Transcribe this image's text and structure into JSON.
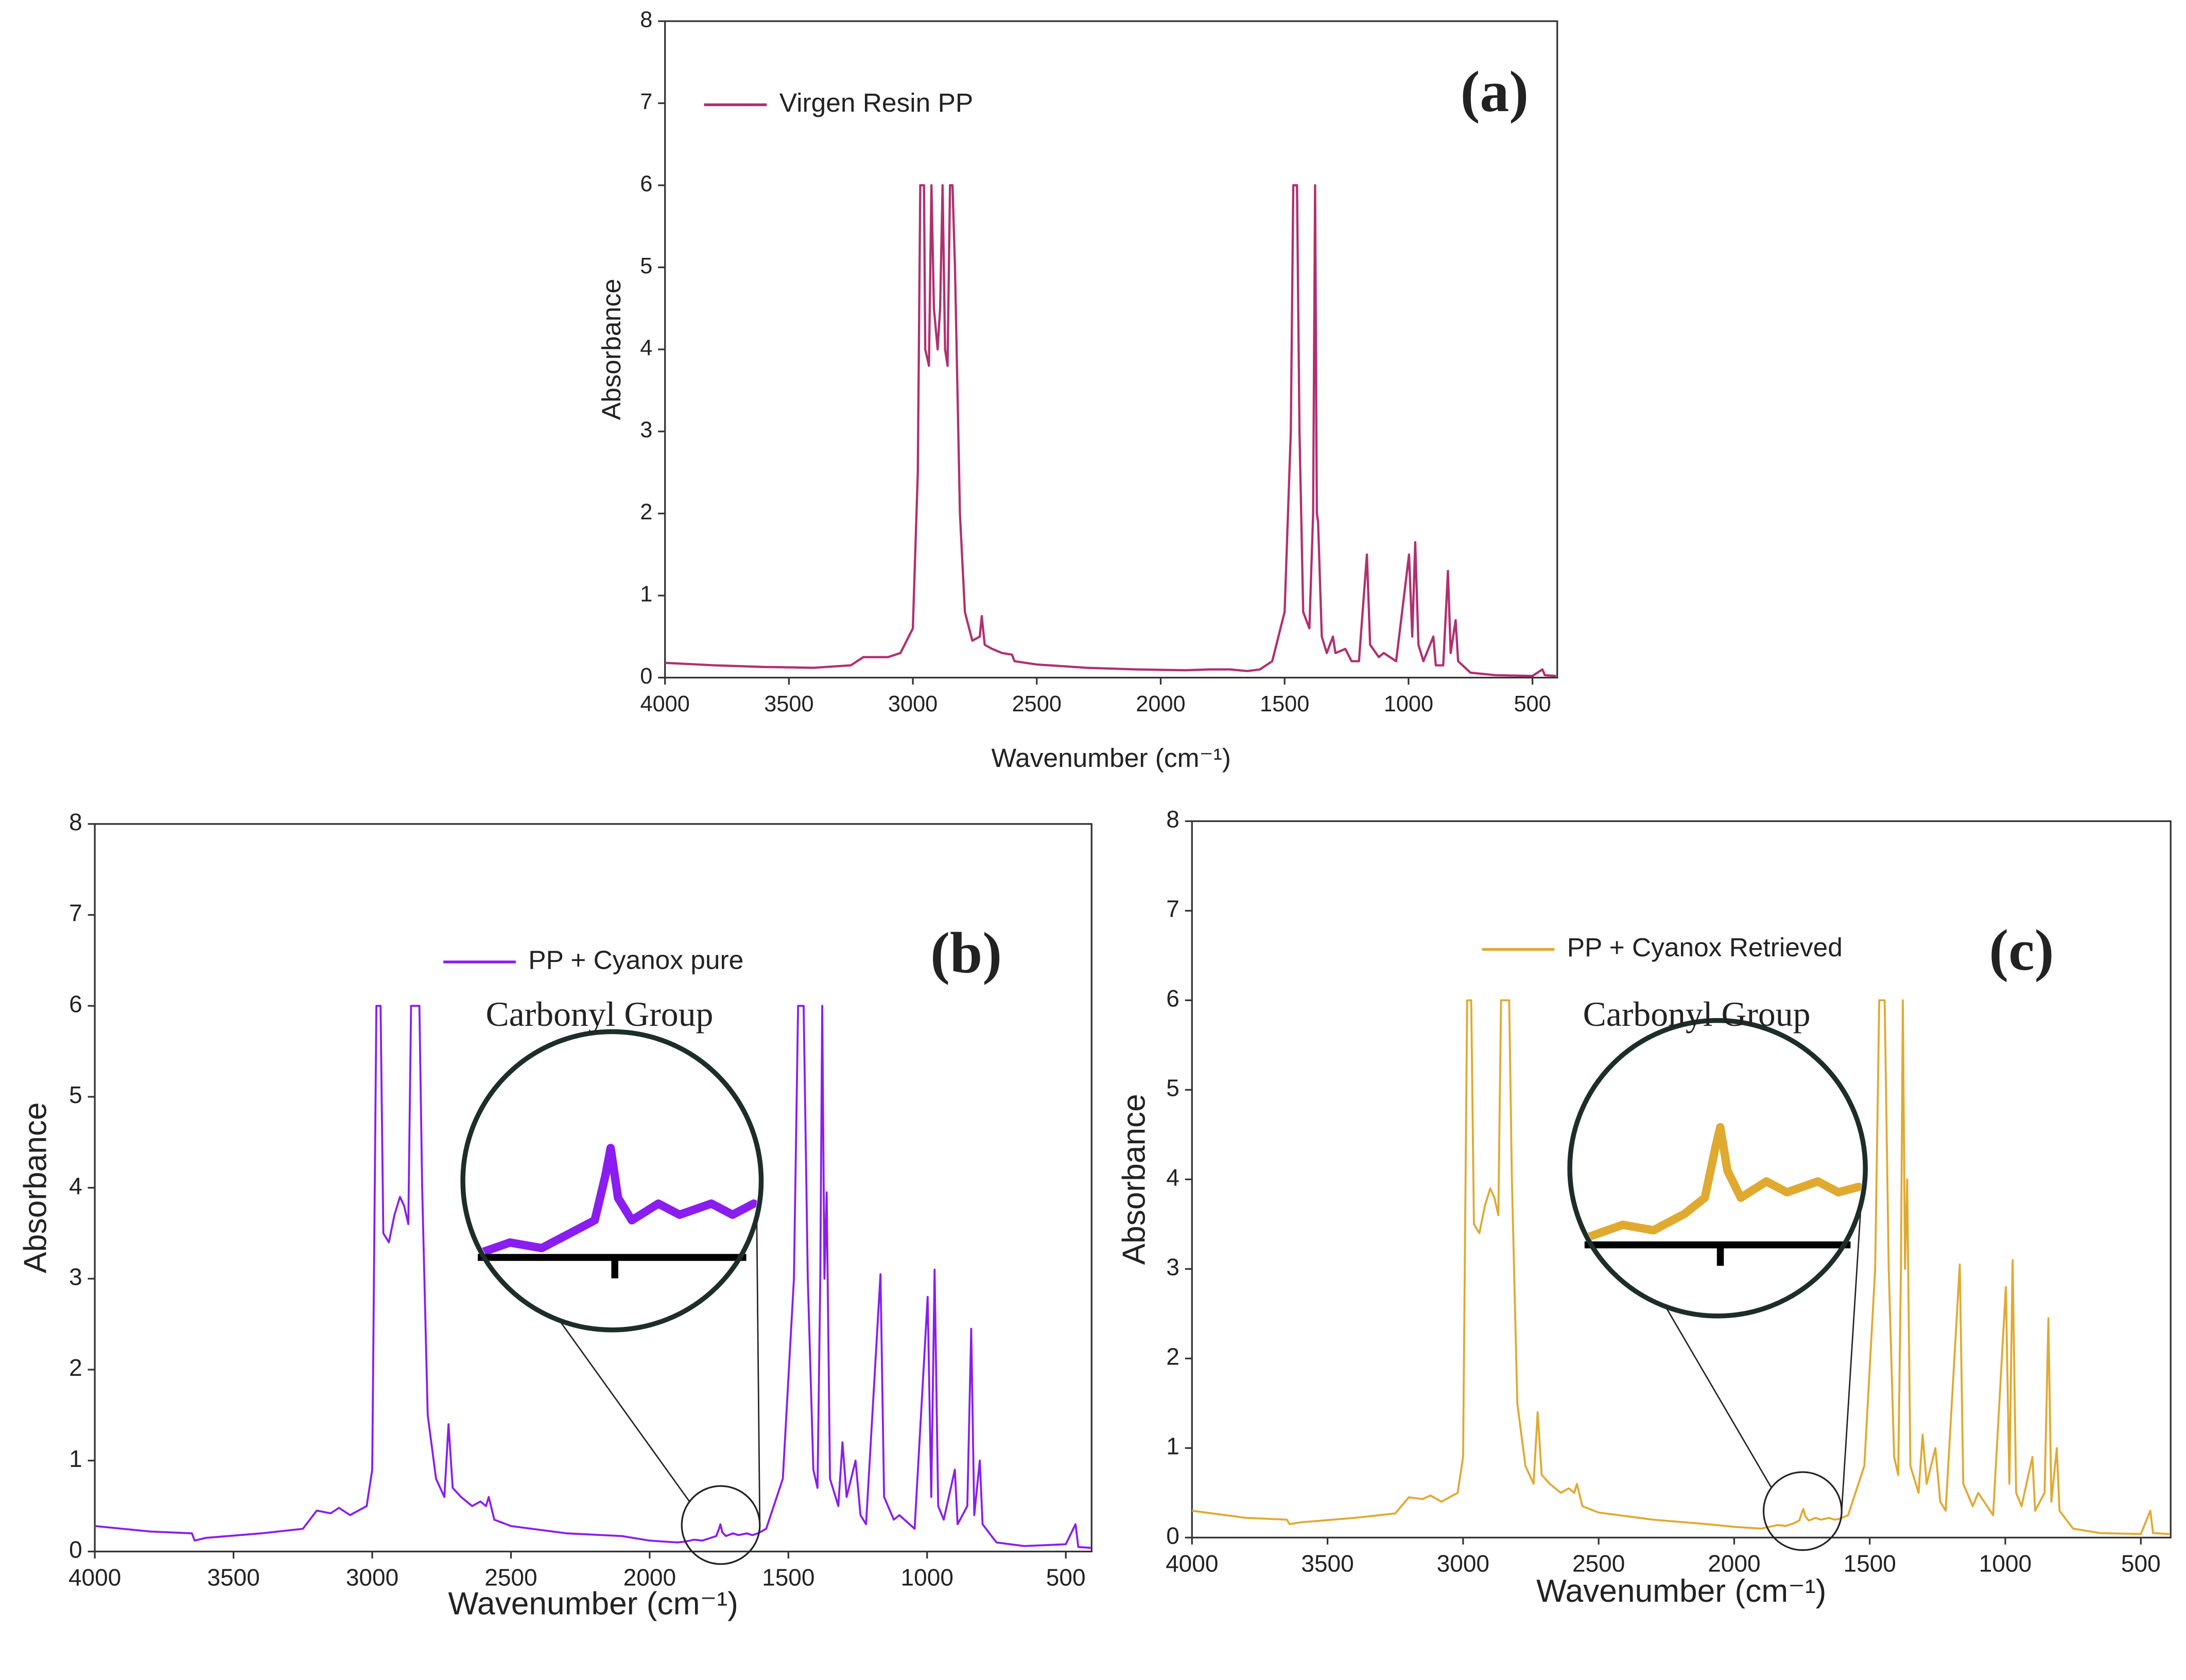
{
  "chart_data": [
    {
      "type": "line",
      "label": "(a)",
      "x_label": "Wavenumber (cm⁻¹)",
      "y_label": "Absorbance",
      "xlim": [
        4000,
        400
      ],
      "ylim": [
        0,
        8
      ],
      "xticks": [
        4000,
        3500,
        3000,
        2500,
        2000,
        1500,
        1000,
        500
      ],
      "yticks": [
        0,
        1,
        2,
        3,
        4,
        5,
        6,
        7,
        8
      ],
      "x": [
        4000,
        3800,
        3600,
        3400,
        3250,
        3200,
        3100,
        3050,
        3000,
        2980,
        2970,
        2955,
        2950,
        2935,
        2925,
        2915,
        2900,
        2890,
        2880,
        2870,
        2860,
        2850,
        2840,
        2830,
        2810,
        2790,
        2760,
        2730,
        2722,
        2710,
        2680,
        2640,
        2600,
        2590,
        2500,
        2300,
        2100,
        1900,
        1800,
        1720,
        1650,
        1600,
        1550,
        1500,
        1475,
        1465,
        1450,
        1440,
        1425,
        1400,
        1385,
        1377,
        1370,
        1365,
        1350,
        1330,
        1305,
        1295,
        1255,
        1230,
        1200,
        1168,
        1155,
        1120,
        1100,
        1050,
        998,
        985,
        973,
        960,
        940,
        900,
        890,
        860,
        841,
        830,
        810,
        800,
        750,
        650,
        500,
        460,
        450,
        405
      ],
      "series": [
        {
          "name": "Virgen Resin PP",
          "color": "#b0306f",
          "values": [
            0.18,
            0.15,
            0.13,
            0.12,
            0.15,
            0.25,
            0.25,
            0.3,
            0.6,
            2.5,
            6,
            6,
            4,
            3.8,
            6,
            4.5,
            4,
            4.5,
            6,
            4,
            3.8,
            6,
            6,
            5,
            2,
            0.8,
            0.45,
            0.5,
            0.75,
            0.4,
            0.35,
            0.3,
            0.28,
            0.2,
            0.16,
            0.12,
            0.1,
            0.09,
            0.1,
            0.1,
            0.08,
            0.1,
            0.2,
            0.8,
            3,
            6,
            6,
            3,
            0.8,
            0.6,
            2,
            6,
            2,
            1.9,
            0.5,
            0.3,
            0.5,
            0.3,
            0.35,
            0.2,
            0.2,
            1.5,
            0.4,
            0.25,
            0.3,
            0.2,
            1.5,
            0.5,
            1.65,
            0.4,
            0.2,
            0.5,
            0.15,
            0.15,
            1.3,
            0.3,
            0.7,
            0.2,
            0.06,
            0.03,
            0.02,
            0.1,
            0.03,
            0.02
          ]
        }
      ]
    },
    {
      "type": "line",
      "label": "(b)",
      "annotation": "Carbonyl Group",
      "x_label": "Wavenumber (cm⁻¹)",
      "y_label": "Absorbance",
      "xlim": [
        4000,
        407
      ],
      "ylim": [
        0,
        8
      ],
      "xticks": [
        4000,
        3500,
        3000,
        2500,
        2000,
        1500,
        1000,
        500
      ],
      "yticks": [
        0,
        1,
        2,
        3,
        4,
        5,
        6,
        7,
        8
      ],
      "x": [
        4000,
        3800,
        3650,
        3640,
        3600,
        3400,
        3250,
        3200,
        3150,
        3120,
        3080,
        3020,
        3000,
        2985,
        2970,
        2960,
        2940,
        2920,
        2900,
        2885,
        2870,
        2860,
        2830,
        2820,
        2800,
        2770,
        2740,
        2725,
        2710,
        2680,
        2640,
        2610,
        2590,
        2580,
        2560,
        2500,
        2300,
        2100,
        2000,
        1900,
        1870,
        1840,
        1810,
        1780,
        1760,
        1750,
        1745,
        1738,
        1725,
        1700,
        1680,
        1650,
        1630,
        1610,
        1580,
        1520,
        1480,
        1465,
        1445,
        1430,
        1410,
        1395,
        1385,
        1378,
        1370,
        1362,
        1350,
        1320,
        1305,
        1290,
        1258,
        1240,
        1220,
        1168,
        1155,
        1120,
        1100,
        1045,
        998,
        985,
        973,
        960,
        940,
        900,
        890,
        855,
        841,
        830,
        810,
        800,
        750,
        650,
        500,
        465,
        455,
        410
      ],
      "series": [
        {
          "name": "PP + Cyanox pure",
          "color": "#8a1df0",
          "values": [
            0.28,
            0.22,
            0.2,
            0.12,
            0.15,
            0.2,
            0.25,
            0.45,
            0.42,
            0.48,
            0.4,
            0.5,
            0.9,
            6,
            6,
            3.5,
            3.4,
            3.7,
            3.9,
            3.8,
            3.6,
            6,
            6,
            4,
            1.5,
            0.8,
            0.6,
            1.4,
            0.7,
            0.6,
            0.5,
            0.55,
            0.5,
            0.6,
            0.35,
            0.28,
            0.2,
            0.17,
            0.12,
            0.1,
            0.11,
            0.13,
            0.12,
            0.15,
            0.17,
            0.25,
            0.3,
            0.21,
            0.17,
            0.2,
            0.18,
            0.2,
            0.18,
            0.2,
            0.25,
            0.8,
            3,
            6,
            6,
            3,
            0.9,
            0.7,
            3,
            6,
            3,
            3.95,
            0.8,
            0.5,
            1.2,
            0.6,
            1,
            0.4,
            0.3,
            3.05,
            0.6,
            0.35,
            0.4,
            0.25,
            2.8,
            0.6,
            3.1,
            0.5,
            0.35,
            0.9,
            0.3,
            0.5,
            2.45,
            0.4,
            1,
            0.3,
            0.1,
            0.06,
            0.08,
            0.3,
            0.05,
            0.04
          ]
        }
      ]
    },
    {
      "type": "line",
      "label": "(c)",
      "annotation": "Carbonyl Group",
      "x_label": "Wavenumber (cm⁻¹)",
      "y_label": "Absorbance",
      "xlim": [
        4000,
        390
      ],
      "ylim": [
        0,
        8
      ],
      "xticks": [
        4000,
        3500,
        3000,
        2500,
        2000,
        1500,
        1000,
        500
      ],
      "yticks": [
        0,
        1,
        2,
        3,
        4,
        5,
        6,
        7,
        8
      ],
      "x": [
        4000,
        3800,
        3650,
        3640,
        3600,
        3400,
        3250,
        3200,
        3150,
        3120,
        3080,
        3020,
        3000,
        2985,
        2970,
        2960,
        2940,
        2920,
        2900,
        2885,
        2870,
        2860,
        2830,
        2820,
        2800,
        2770,
        2740,
        2725,
        2710,
        2680,
        2640,
        2610,
        2590,
        2580,
        2560,
        2500,
        2300,
        2100,
        2000,
        1900,
        1870,
        1840,
        1810,
        1780,
        1760,
        1750,
        1745,
        1738,
        1725,
        1700,
        1680,
        1650,
        1630,
        1610,
        1580,
        1520,
        1480,
        1465,
        1445,
        1430,
        1410,
        1395,
        1385,
        1378,
        1370,
        1362,
        1350,
        1320,
        1305,
        1290,
        1258,
        1240,
        1220,
        1168,
        1155,
        1120,
        1100,
        1045,
        998,
        985,
        973,
        960,
        940,
        900,
        890,
        855,
        841,
        830,
        810,
        800,
        750,
        650,
        500,
        465,
        455,
        395
      ],
      "series": [
        {
          "name": "PP + Cyanox Retrieved",
          "color": "#e0a930",
          "values": [
            0.3,
            0.22,
            0.2,
            0.15,
            0.17,
            0.22,
            0.27,
            0.45,
            0.43,
            0.47,
            0.4,
            0.5,
            0.9,
            6,
            6,
            3.5,
            3.4,
            3.7,
            3.9,
            3.8,
            3.6,
            6,
            6,
            4,
            1.5,
            0.8,
            0.6,
            1.4,
            0.7,
            0.6,
            0.5,
            0.55,
            0.5,
            0.6,
            0.35,
            0.28,
            0.2,
            0.15,
            0.12,
            0.1,
            0.12,
            0.14,
            0.13,
            0.16,
            0.19,
            0.28,
            0.32,
            0.24,
            0.19,
            0.22,
            0.2,
            0.22,
            0.2,
            0.21,
            0.25,
            0.8,
            3,
            6,
            6,
            3,
            0.9,
            0.7,
            3,
            6,
            3,
            4,
            0.8,
            0.5,
            1.15,
            0.6,
            1,
            0.4,
            0.3,
            3.05,
            0.6,
            0.35,
            0.5,
            0.25,
            2.8,
            0.6,
            3.1,
            0.5,
            0.35,
            0.9,
            0.3,
            0.5,
            2.45,
            0.4,
            1,
            0.3,
            0.1,
            0.05,
            0.04,
            0.3,
            0.05,
            0.04
          ]
        }
      ]
    }
  ]
}
